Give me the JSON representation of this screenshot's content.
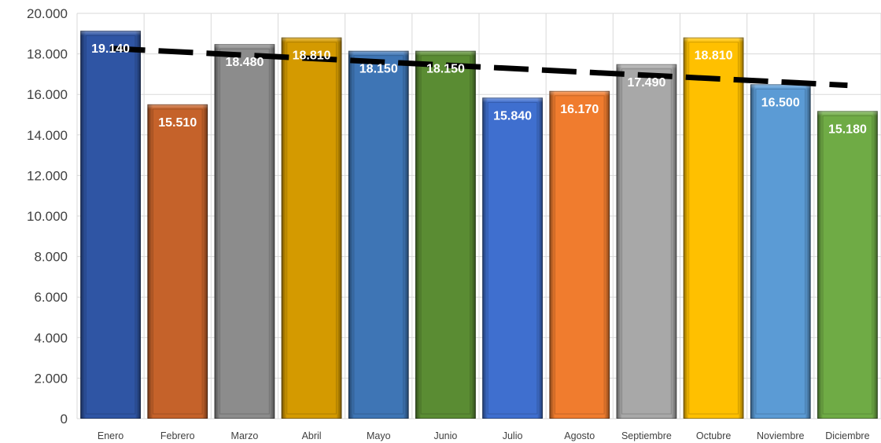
{
  "chart_data": {
    "type": "bar",
    "title": "",
    "xlabel": "",
    "ylabel": "",
    "categories": [
      "Enero",
      "Febrero",
      "Marzo",
      "Abril",
      "Mayo",
      "Junio",
      "Julio",
      "Agosto",
      "Septiembre",
      "Octubre",
      "Noviembre",
      "Diciembre"
    ],
    "values": [
      19140,
      15510,
      18480,
      18810,
      18150,
      18150,
      15840,
      16170,
      17490,
      18810,
      16500,
      15180
    ],
    "data_labels": [
      "19.140",
      "15.510",
      "18.480",
      "18.810",
      "18.150",
      "18.150",
      "15.840",
      "16.170",
      "17.490",
      "18.810",
      "16.500",
      "15.180"
    ],
    "bar_colors": [
      "#2F55A4",
      "#C5622A",
      "#8C8C8C",
      "#D49A00",
      "#3E75B5",
      "#5A8C33",
      "#3F6FCF",
      "#F07C2E",
      "#A8A8A8",
      "#FFC000",
      "#5B9BD5",
      "#6FAB45"
    ],
    "ylim": [
      0,
      20000
    ],
    "yticks": [
      0,
      2000,
      4000,
      6000,
      8000,
      10000,
      12000,
      14000,
      16000,
      18000,
      20000
    ],
    "ytick_labels": [
      "0",
      "2.000",
      "4.000",
      "6.000",
      "8.000",
      "10.000",
      "12.000",
      "14.000",
      "16.000",
      "18.000",
      "20.000"
    ],
    "grid": true,
    "legend": "none",
    "trendline": {
      "type": "linear",
      "style": "dashed",
      "color": "#000000",
      "start_value": 18270,
      "end_value": 16450
    }
  }
}
